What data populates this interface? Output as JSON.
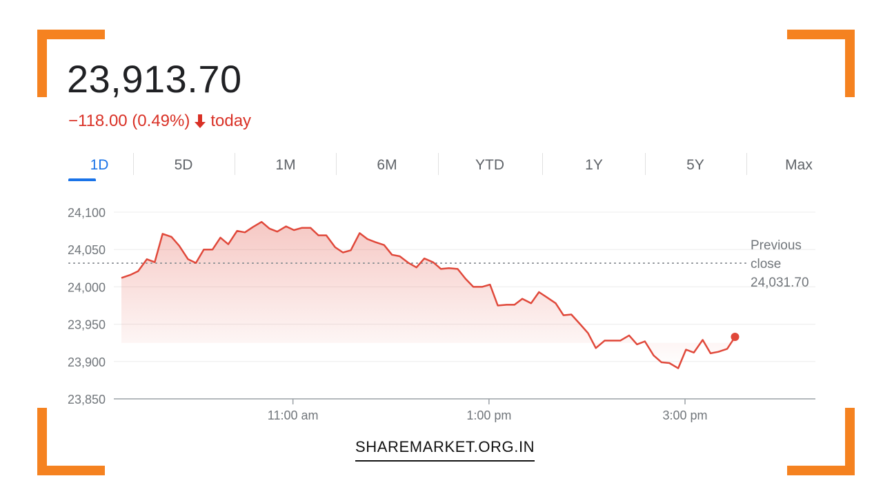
{
  "quote": {
    "price": "23,913.70",
    "change": "−118.00 (0.49%)",
    "period_label": "today",
    "direction": "down",
    "color": "#d93025"
  },
  "tabs": [
    "1D",
    "5D",
    "1M",
    "6M",
    "YTD",
    "1Y",
    "5Y",
    "Max"
  ],
  "active_tab": "1D",
  "chart_data": {
    "type": "area",
    "title": "",
    "xlabel": "",
    "ylabel": "",
    "ylim": [
      23850,
      24100
    ],
    "yticks": [
      "24,100",
      "24,050",
      "24,000",
      "23,950",
      "23,900",
      "23,850"
    ],
    "xticks": [
      {
        "label": "11:00 am",
        "t": 11.0
      },
      {
        "label": "1:00 pm",
        "t": 13.0
      },
      {
        "label": "3:00 pm",
        "t": 15.0
      }
    ],
    "x_range_hours": [
      9.25,
      16.33
    ],
    "previous_close": {
      "label_lines": [
        "Previous",
        "close",
        "24,031.70"
      ],
      "value": 24031.7
    },
    "series": [
      {
        "line_color": "#e0483a",
        "points": [
          [
            9.25,
            24012
          ],
          [
            9.34,
            24016
          ],
          [
            9.42,
            24021
          ],
          [
            9.51,
            24037
          ],
          [
            9.59,
            24033
          ],
          [
            9.67,
            24071
          ],
          [
            9.76,
            24067
          ],
          [
            9.84,
            24055
          ],
          [
            9.93,
            24037
          ],
          [
            10.01,
            24032
          ],
          [
            10.09,
            24050
          ],
          [
            10.18,
            24050
          ],
          [
            10.26,
            24066
          ],
          [
            10.34,
            24057
          ],
          [
            10.43,
            24075
          ],
          [
            10.51,
            24073
          ],
          [
            10.59,
            24080
          ],
          [
            10.68,
            24087
          ],
          [
            10.76,
            24078
          ],
          [
            10.84,
            24074
          ],
          [
            10.93,
            24081
          ],
          [
            11.01,
            24076
          ],
          [
            11.09,
            24079
          ],
          [
            11.18,
            24079
          ],
          [
            11.26,
            24069
          ],
          [
            11.34,
            24069
          ],
          [
            11.43,
            24053
          ],
          [
            11.51,
            24046
          ],
          [
            11.59,
            24049
          ],
          [
            11.68,
            24072
          ],
          [
            11.76,
            24064
          ],
          [
            11.84,
            24060
          ],
          [
            11.93,
            24056
          ],
          [
            12.01,
            24043
          ],
          [
            12.09,
            24041
          ],
          [
            12.18,
            24032
          ],
          [
            12.26,
            24026
          ],
          [
            12.34,
            24038
          ],
          [
            12.43,
            24033
          ],
          [
            12.51,
            24024
          ],
          [
            12.59,
            24025
          ],
          [
            12.68,
            24024
          ],
          [
            12.76,
            24011
          ],
          [
            12.84,
            24000
          ],
          [
            12.93,
            24000
          ],
          [
            13.01,
            24003
          ],
          [
            13.09,
            23975
          ],
          [
            13.18,
            23976
          ],
          [
            13.26,
            23976
          ],
          [
            13.34,
            23984
          ],
          [
            13.43,
            23978
          ],
          [
            13.51,
            23993
          ],
          [
            13.59,
            23986
          ],
          [
            13.68,
            23978
          ],
          [
            13.76,
            23962
          ],
          [
            13.84,
            23963
          ],
          [
            13.93,
            23950
          ],
          [
            14.01,
            23938
          ],
          [
            14.09,
            23918
          ],
          [
            14.18,
            23928
          ],
          [
            14.26,
            23928
          ],
          [
            14.34,
            23928
          ],
          [
            14.43,
            23935
          ],
          [
            14.51,
            23923
          ],
          [
            14.59,
            23927
          ],
          [
            14.68,
            23908
          ],
          [
            14.76,
            23899
          ],
          [
            14.84,
            23898
          ],
          [
            14.93,
            23891
          ],
          [
            15.01,
            23916
          ],
          [
            15.09,
            23912
          ],
          [
            15.18,
            23929
          ],
          [
            15.26,
            23911
          ],
          [
            15.34,
            23913
          ],
          [
            15.43,
            23917
          ],
          [
            15.51,
            23933
          ]
        ]
      }
    ],
    "grid": true,
    "last_point_marker": true
  },
  "watermark": "SHAREMARKET.ORG.IN"
}
